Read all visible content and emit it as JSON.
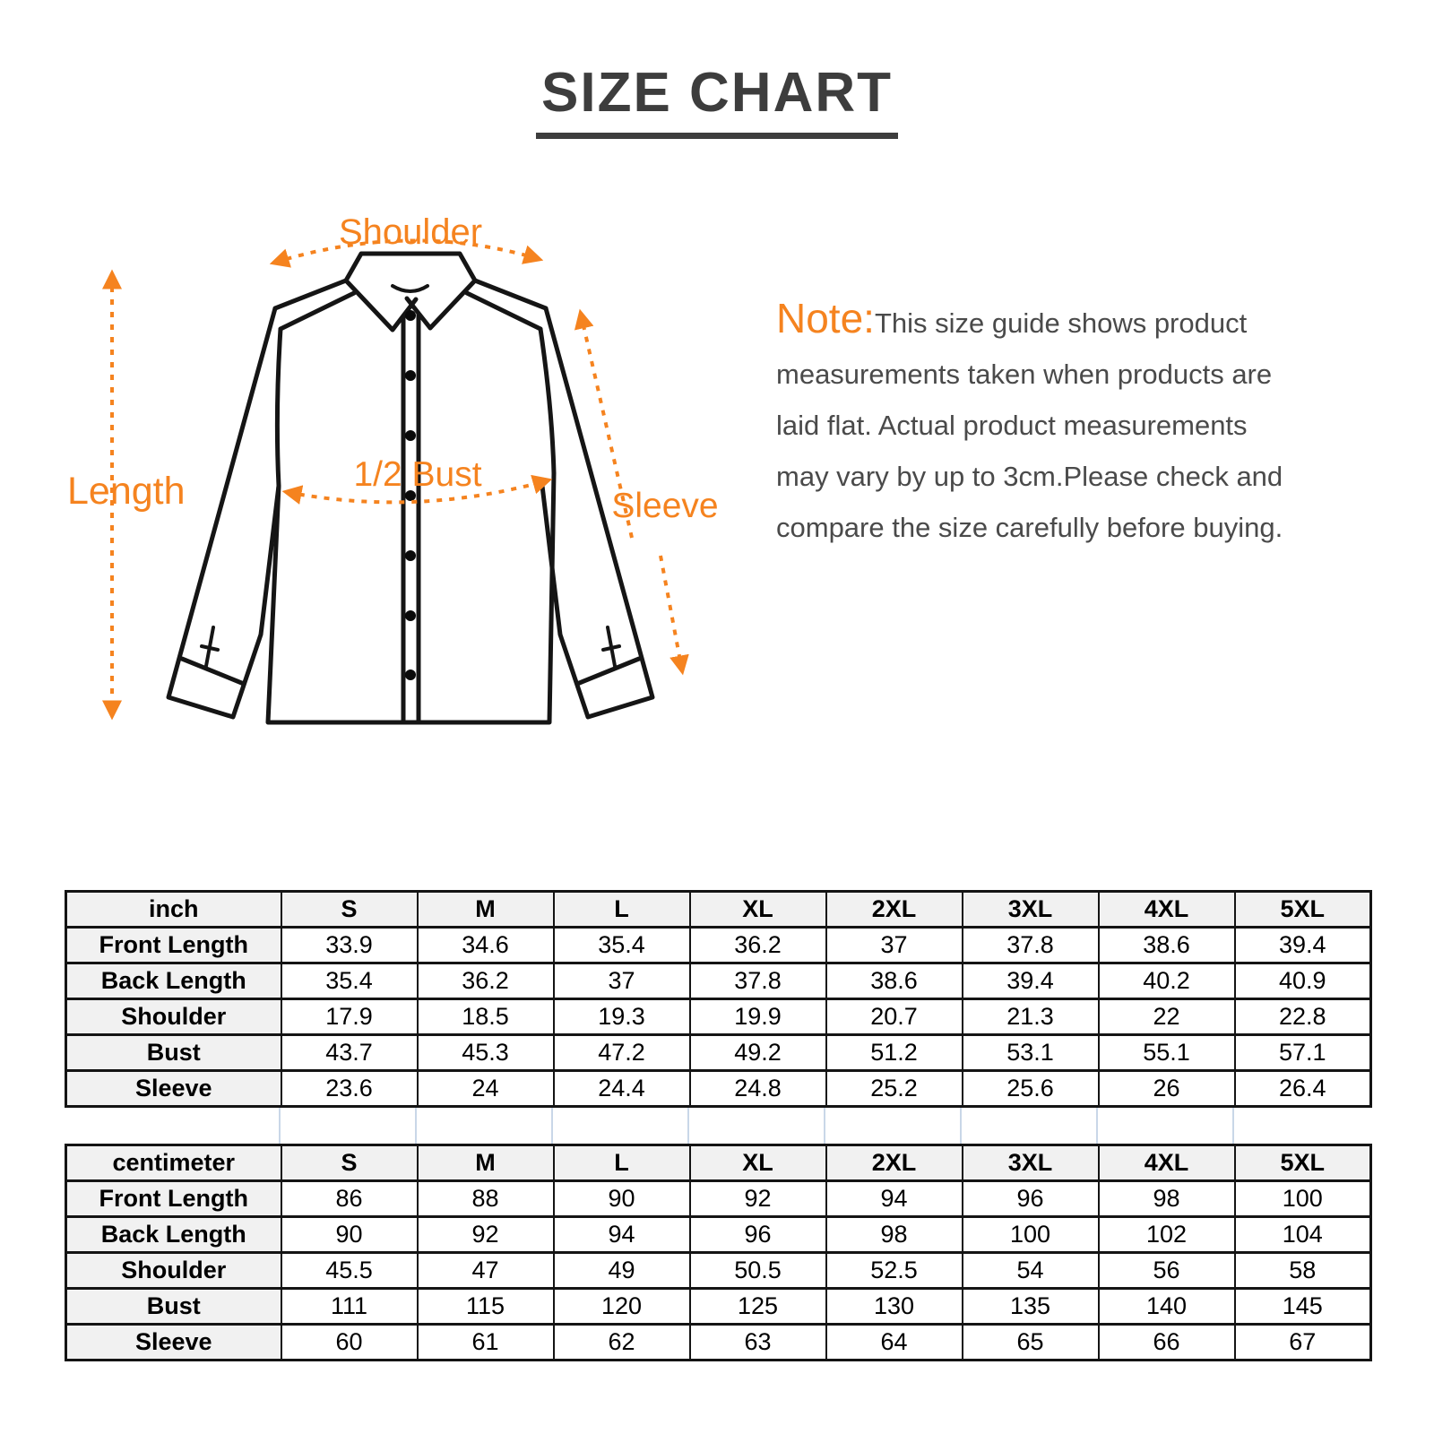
{
  "header": {
    "title": "SIZE CHART"
  },
  "note": {
    "prefix": "Note:",
    "lines": [
      "This size guide shows product",
      "measurements taken when products are",
      "laid flat. Actual product measurements",
      "may vary by up to 3cm.Please check and",
      "compare the size carefully before buying."
    ]
  },
  "diagram": {
    "labels": {
      "shoulder": "Shoulder",
      "length": "Length",
      "half_bust": "1/2 Bust",
      "sleeve": "Sleeve"
    }
  },
  "colors": {
    "accent_orange": "#f5831f",
    "title_text": "#3d3d3d",
    "note_text": "#4a4a4a",
    "shirt_outline": "#151515",
    "table_border": "#141414",
    "table_header_bg": "#f1f1f1",
    "gap_guide_line": "#c9d7e8"
  },
  "chart_data": [
    {
      "type": "table",
      "unit": "inch",
      "columns": [
        "S",
        "M",
        "L",
        "XL",
        "2XL",
        "3XL",
        "4XL",
        "5XL"
      ],
      "rows": [
        {
          "label": "Front Length",
          "values": [
            "33.9",
            "34.6",
            "35.4",
            "36.2",
            "37",
            "37.8",
            "38.6",
            "39.4"
          ]
        },
        {
          "label": "Back Length",
          "values": [
            "35.4",
            "36.2",
            "37",
            "37.8",
            "38.6",
            "39.4",
            "40.2",
            "40.9"
          ]
        },
        {
          "label": "Shoulder",
          "values": [
            "17.9",
            "18.5",
            "19.3",
            "19.9",
            "20.7",
            "21.3",
            "22",
            "22.8"
          ]
        },
        {
          "label": "Bust",
          "values": [
            "43.7",
            "45.3",
            "47.2",
            "49.2",
            "51.2",
            "53.1",
            "55.1",
            "57.1"
          ]
        },
        {
          "label": "Sleeve",
          "values": [
            "23.6",
            "24",
            "24.4",
            "24.8",
            "25.2",
            "25.6",
            "26",
            "26.4"
          ]
        }
      ]
    },
    {
      "type": "table",
      "unit": "centimeter",
      "columns": [
        "S",
        "M",
        "L",
        "XL",
        "2XL",
        "3XL",
        "4XL",
        "5XL"
      ],
      "rows": [
        {
          "label": "Front Length",
          "values": [
            "86",
            "88",
            "90",
            "92",
            "94",
            "96",
            "98",
            "100"
          ]
        },
        {
          "label": "Back Length",
          "values": [
            "90",
            "92",
            "94",
            "96",
            "98",
            "100",
            "102",
            "104"
          ]
        },
        {
          "label": "Shoulder",
          "values": [
            "45.5",
            "47",
            "49",
            "50.5",
            "52.5",
            "54",
            "56",
            "58"
          ]
        },
        {
          "label": "Bust",
          "values": [
            "111",
            "115",
            "120",
            "125",
            "130",
            "135",
            "140",
            "145"
          ]
        },
        {
          "label": "Sleeve",
          "values": [
            "60",
            "61",
            "62",
            "63",
            "64",
            "65",
            "66",
            "67"
          ]
        }
      ]
    }
  ]
}
